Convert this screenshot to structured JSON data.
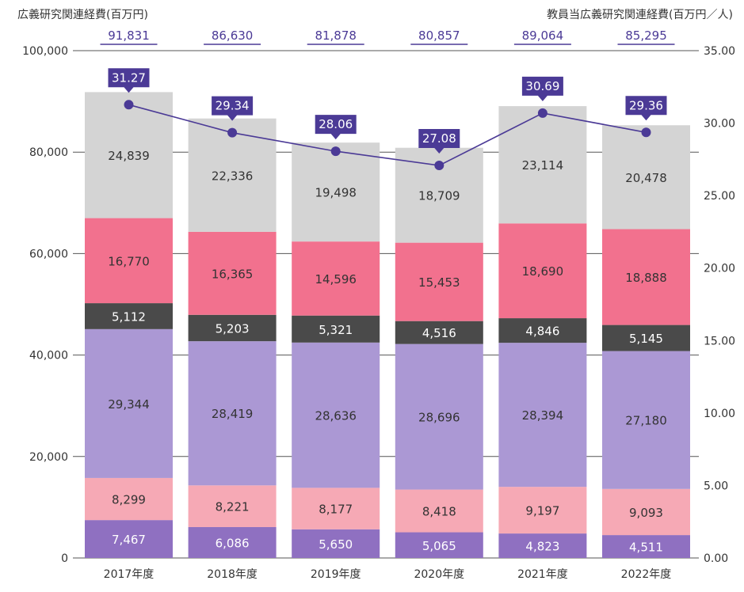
{
  "chart_data": {
    "type": "bar",
    "stacked": true,
    "categories": [
      "2017年度",
      "2018年度",
      "2019年度",
      "2020年度",
      "2021年度",
      "2022年度"
    ],
    "series": [
      {
        "values": [
          7467,
          6086,
          5650,
          5065,
          4823,
          4511
        ],
        "color": "#8f70c1",
        "label_color": "#ffffff"
      },
      {
        "values": [
          8299,
          8221,
          8177,
          8418,
          9197,
          9093
        ],
        "color": "#f6a9b5",
        "label_color": "#333333"
      },
      {
        "values": [
          29344,
          28419,
          28636,
          28696,
          28394,
          27180
        ],
        "color": "#ab98d4",
        "label_color": "#333333"
      },
      {
        "values": [
          5112,
          5203,
          5321,
          4516,
          4846,
          5145
        ],
        "color": "#4a4a4a",
        "label_color": "#ffffff"
      },
      {
        "values": [
          16770,
          16365,
          14596,
          15453,
          18690,
          18888
        ],
        "color": "#f2718e",
        "label_color": "#333333"
      },
      {
        "values": [
          24839,
          22336,
          19498,
          18709,
          23114,
          20478
        ],
        "color": "#d4d4d4",
        "label_color": "#333333"
      }
    ],
    "totals": [
      "91,831",
      "86,630",
      "81,878",
      "80,857",
      "89,064",
      "85,295"
    ],
    "totals_color": "#4b3a96",
    "line": {
      "values": [
        31.27,
        29.34,
        28.06,
        27.08,
        30.69,
        29.36
      ],
      "labels": [
        "31.27",
        "29.34",
        "28.06",
        "27.08",
        "30.69",
        "29.36"
      ],
      "color": "#4b3a96",
      "axis": "right"
    },
    "ylabel": "広義研究関連経費(百万円)",
    "ylabel_right": "教員当広義研究関連経費(百万円／人)",
    "ylim": [
      0,
      100000
    ],
    "yticks": [
      "0",
      "20,000",
      "40,000",
      "60,000",
      "80,000",
      "100,000"
    ],
    "ylim_right": [
      0,
      35
    ],
    "yticks_right": [
      "0.00",
      "5.00",
      "10.00",
      "15.00",
      "20.00",
      "25.00",
      "30.00",
      "35.00"
    ],
    "grid": true,
    "gridline_color": "#555555"
  }
}
